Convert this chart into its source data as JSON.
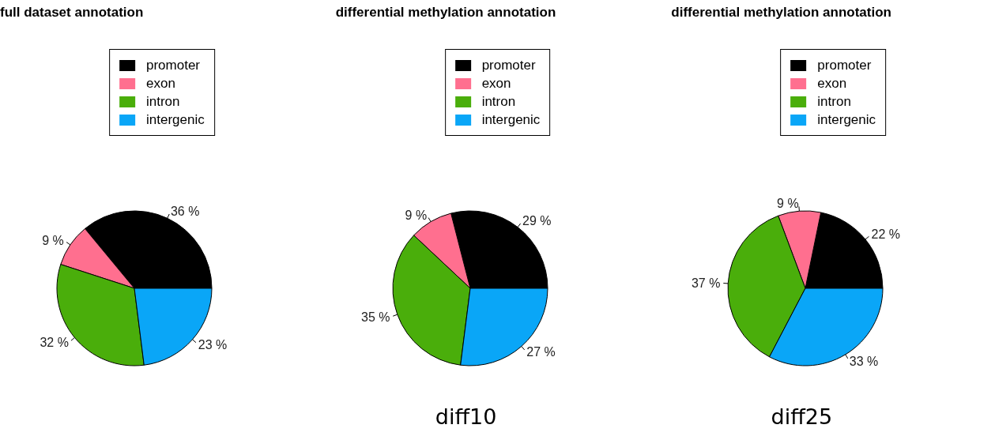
{
  "chart_data": [
    {
      "type": "pie",
      "title": "full dataset annotation",
      "categories": [
        "promoter",
        "exon",
        "intron",
        "intergenic"
      ],
      "values": [
        36,
        9,
        32,
        23
      ],
      "colors": [
        "#000000",
        "#ff6f8f",
        "#4aae0b",
        "#0aa6f7"
      ],
      "value_labels": [
        "36 %",
        "9 %",
        "32 %",
        "23 %"
      ],
      "legend": "top"
    },
    {
      "type": "pie",
      "title": "differential methylation annotation",
      "categories": [
        "promoter",
        "exon",
        "intron",
        "intergenic"
      ],
      "values": [
        29,
        9,
        35,
        27
      ],
      "colors": [
        "#000000",
        "#ff6f8f",
        "#4aae0b",
        "#0aa6f7"
      ],
      "value_labels": [
        "29 %",
        "9 %",
        "35 %",
        "27 %"
      ],
      "legend": "top",
      "annotations": [
        "diff10"
      ]
    },
    {
      "type": "pie",
      "title": "differential methylation annotation",
      "categories": [
        "promoter",
        "exon",
        "intron",
        "intergenic"
      ],
      "values": [
        22,
        9,
        37,
        33
      ],
      "colors": [
        "#000000",
        "#ff6f8f",
        "#4aae0b",
        "#0aa6f7"
      ],
      "value_labels": [
        "22 %",
        "9 %",
        "37 %",
        "33 %"
      ],
      "legend": "top",
      "annotations": [
        "diff25"
      ]
    }
  ]
}
